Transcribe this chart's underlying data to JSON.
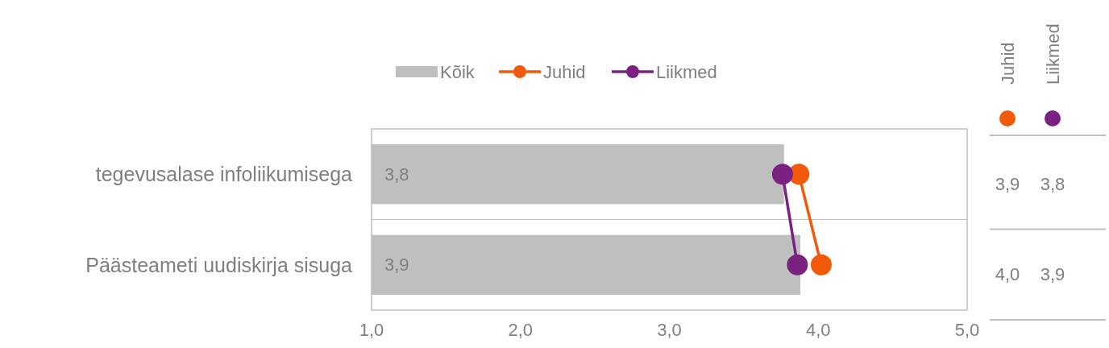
{
  "chart_data": {
    "type": "bar",
    "orientation": "horizontal",
    "categories": [
      "tegevusalase infoliikumisega",
      "Päästeameti uudiskirja sisuga"
    ],
    "series": [
      {
        "name": "Kõik",
        "color": "#bfbfbf",
        "values": [
          3.77,
          3.88
        ],
        "value_labels": [
          "3,8",
          "3,9"
        ]
      },
      {
        "name": "Juhid",
        "type": "line",
        "color": "#f05a0a",
        "values": [
          3.87,
          4.02
        ],
        "value_labels": [
          "3,9",
          "4,0"
        ]
      },
      {
        "name": "Liikmed",
        "type": "line",
        "color": "#7b2182",
        "values": [
          3.76,
          3.86
        ],
        "value_labels": [
          "3,8",
          "3,9"
        ]
      }
    ],
    "xlim": [
      1,
      5
    ],
    "xticks": [
      {
        "value": 1,
        "label": "1,0"
      },
      {
        "value": 2,
        "label": "2,0"
      },
      {
        "value": 3,
        "label": "3,0"
      },
      {
        "value": 4,
        "label": "4,0"
      },
      {
        "value": 5,
        "label": "5,0"
      }
    ],
    "marker": "circle",
    "legend": "top"
  }
}
